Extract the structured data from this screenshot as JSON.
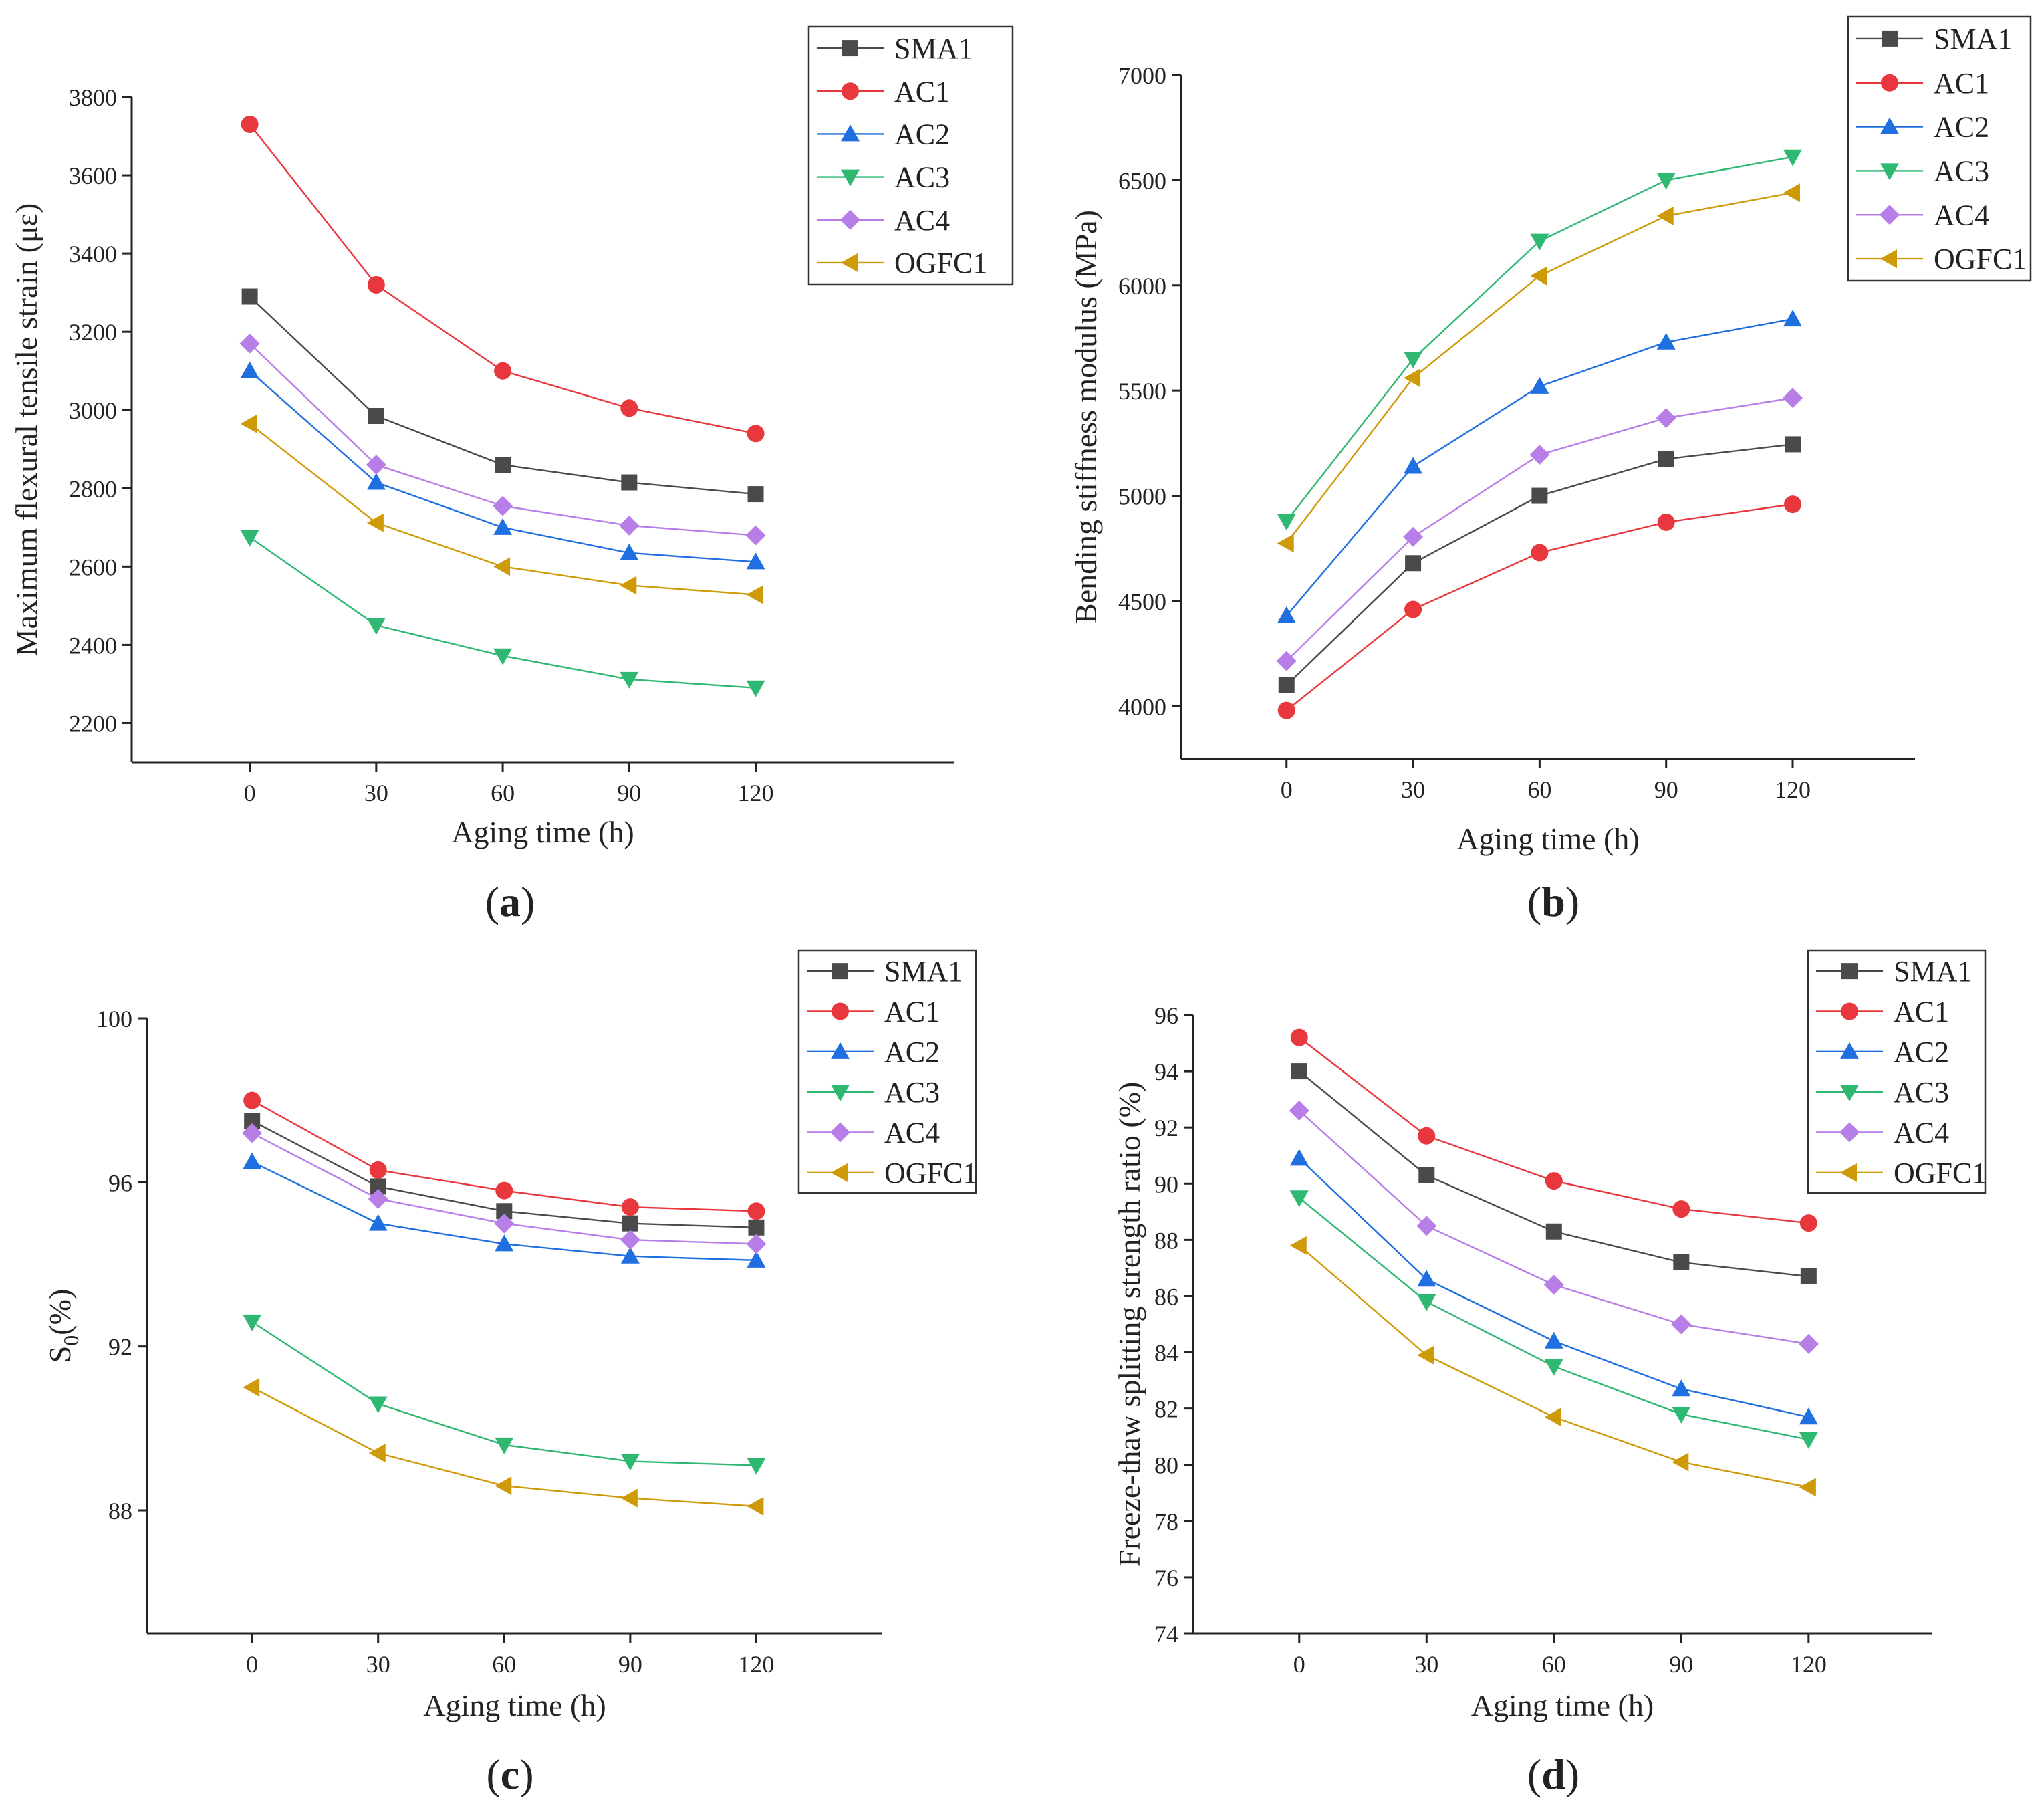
{
  "chart_data": [
    {
      "panel": "(a)",
      "panel_letter": "a",
      "type": "line",
      "xlabel": "Aging time (h)",
      "ylabel": "Maximum flexural tensile strain (με)",
      "x": [
        0,
        30,
        60,
        90,
        120
      ],
      "x_ticks": [
        "0",
        "30",
        "60",
        "90",
        "120"
      ],
      "xlim": [
        -28,
        167
      ],
      "ylim": [
        2100,
        3800
      ],
      "y_ticks": [
        2200,
        2400,
        2600,
        2800,
        3000,
        3200,
        3400,
        3600,
        3800
      ],
      "legend_position": "top-right",
      "series": [
        {
          "name": "SMA1",
          "values": [
            3290,
            2985,
            2860,
            2815,
            2785
          ]
        },
        {
          "name": "AC1",
          "values": [
            3730,
            3320,
            3100,
            3005,
            2940
          ]
        },
        {
          "name": "AC2",
          "values": [
            3100,
            2815,
            2700,
            2635,
            2612
          ]
        },
        {
          "name": "AC3",
          "values": [
            2675,
            2450,
            2372,
            2312,
            2290
          ]
        },
        {
          "name": "AC4",
          "values": [
            3170,
            2860,
            2755,
            2705,
            2680
          ]
        },
        {
          "name": "OGFC1",
          "values": [
            2965,
            2712,
            2600,
            2552,
            2528
          ]
        }
      ]
    },
    {
      "panel": "(b)",
      "panel_letter": "b",
      "type": "line",
      "xlabel": "Aging time (h)",
      "ylabel": "Bending stiffness modulus (MPa)",
      "x": [
        0,
        30,
        60,
        90,
        120
      ],
      "x_ticks": [
        "0",
        "30",
        "60",
        "90",
        "120"
      ],
      "xlim": [
        -25,
        149
      ],
      "ylim": [
        3750,
        7000
      ],
      "y_ticks": [
        4000,
        4500,
        5000,
        5500,
        6000,
        6500,
        7000
      ],
      "legend_position": "top-right",
      "series": [
        {
          "name": "SMA1",
          "values": [
            4100,
            4680,
            5000,
            5175,
            5245
          ]
        },
        {
          "name": "AC1",
          "values": [
            3980,
            4460,
            4730,
            4875,
            4960
          ]
        },
        {
          "name": "AC2",
          "values": [
            4430,
            5140,
            5520,
            5730,
            5840
          ]
        },
        {
          "name": "AC3",
          "values": [
            4880,
            5650,
            6210,
            6500,
            6610
          ]
        },
        {
          "name": "AC4",
          "values": [
            4215,
            4805,
            5195,
            5370,
            5465
          ]
        },
        {
          "name": "OGFC1",
          "values": [
            4775,
            5560,
            6045,
            6330,
            6440
          ]
        }
      ]
    },
    {
      "panel": "(c)",
      "panel_letter": "c",
      "type": "line",
      "xlabel": "Aging time (h)",
      "ylabel_main": "S",
      "ylabel_sub": "0",
      "ylabel_tail": "(%)",
      "x": [
        0,
        30,
        60,
        90,
        120
      ],
      "x_ticks": [
        "0",
        "30",
        "60",
        "90",
        "120"
      ],
      "xlim": [
        -25,
        150
      ],
      "ylim": [
        85,
        100
      ],
      "y_ticks": [
        88,
        92,
        96,
        100
      ],
      "legend_position": "top-right",
      "series": [
        {
          "name": "SMA1",
          "values": [
            97.5,
            95.9,
            95.3,
            95.0,
            94.9
          ]
        },
        {
          "name": "AC1",
          "values": [
            98.0,
            96.3,
            95.8,
            95.4,
            95.3
          ]
        },
        {
          "name": "AC2",
          "values": [
            96.5,
            95.0,
            94.5,
            94.2,
            94.1
          ]
        },
        {
          "name": "AC3",
          "values": [
            92.6,
            90.6,
            89.6,
            89.2,
            89.1
          ]
        },
        {
          "name": "AC4",
          "values": [
            97.2,
            95.6,
            95.0,
            94.6,
            94.5
          ]
        },
        {
          "name": "OGFC1",
          "values": [
            91.0,
            89.4,
            88.6,
            88.3,
            88.1
          ]
        }
      ]
    },
    {
      "panel": "(d)",
      "panel_letter": "d",
      "type": "line",
      "xlabel": "Aging time (h)",
      "ylabel": "Freeze-thaw splitting strength ratio (%)",
      "x": [
        0,
        30,
        60,
        90,
        120
      ],
      "x_ticks": [
        "0",
        "30",
        "60",
        "90",
        "120"
      ],
      "xlim": [
        -25,
        149
      ],
      "ylim": [
        74,
        96
      ],
      "y_ticks": [
        74,
        76,
        78,
        80,
        82,
        84,
        86,
        88,
        90,
        92,
        94,
        96
      ],
      "legend_position": "top-right",
      "series": [
        {
          "name": "SMA1",
          "values": [
            94.0,
            90.3,
            88.3,
            87.2,
            86.7
          ]
        },
        {
          "name": "AC1",
          "values": [
            95.2,
            91.7,
            90.1,
            89.1,
            88.6
          ]
        },
        {
          "name": "AC2",
          "values": [
            90.9,
            86.6,
            84.4,
            82.7,
            81.7
          ]
        },
        {
          "name": "AC3",
          "values": [
            89.5,
            85.8,
            83.5,
            81.8,
            80.9
          ]
        },
        {
          "name": "AC4",
          "values": [
            92.6,
            88.5,
            86.4,
            85.0,
            84.3
          ]
        },
        {
          "name": "OGFC1",
          "values": [
            87.8,
            83.9,
            81.7,
            80.1,
            79.2
          ]
        }
      ]
    }
  ],
  "series_style": {
    "SMA1": {
      "color": "#4a4a4a",
      "marker": "square-icon"
    },
    "AC1": {
      "color": "#e8383d",
      "marker": "circle-icon"
    },
    "AC2": {
      "color": "#1f6fe0",
      "marker": "triangle-up-icon"
    },
    "AC3": {
      "color": "#2eb872",
      "marker": "triangle-down-icon"
    },
    "AC4": {
      "color": "#b77ee8",
      "marker": "diamond-icon"
    },
    "OGFC1": {
      "color": "#cf9a08",
      "marker": "triangle-left-icon"
    }
  }
}
